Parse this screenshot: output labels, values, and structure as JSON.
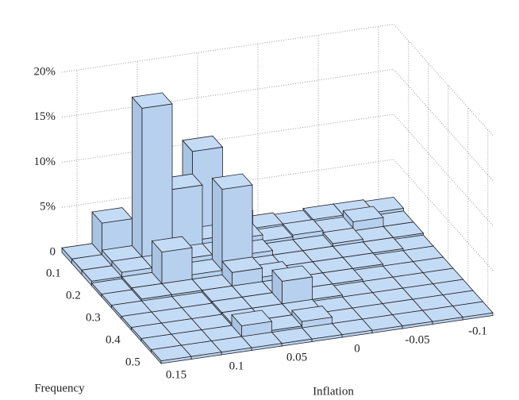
{
  "chart_data": {
    "type": "bar3d",
    "x_label": "Inflation",
    "y_label": "Frequency",
    "x": [
      -0.1,
      -0.075,
      -0.05,
      -0.025,
      0,
      0.025,
      0.05,
      0.075,
      0.1,
      0.125,
      0.15
    ],
    "y": [
      0.05,
      0.1,
      0.15,
      0.2,
      0.25,
      0.3,
      0.35,
      0.4,
      0.45,
      0.5
    ],
    "values": [
      [
        0.8,
        1,
        1,
        0.8,
        1,
        3,
        10.5,
        1.5,
        0.5,
        4,
        0.5
      ],
      [
        0.5,
        1.5,
        0.8,
        1,
        0.8,
        1.5,
        2,
        8,
        17.5,
        1,
        0.5
      ],
      [
        0.5,
        0.5,
        0.8,
        0.5,
        0.5,
        1,
        1.5,
        1.5,
        1,
        1,
        0.5
      ],
      [
        0.3,
        0.5,
        0.5,
        0.5,
        0.5,
        0.5,
        10,
        1,
        4,
        0.5,
        0.3
      ],
      [
        0.3,
        0.3,
        0.5,
        0.5,
        0.5,
        1,
        2,
        0.5,
        0.5,
        0.5,
        0.3
      ],
      [
        0.3,
        0.3,
        0.3,
        0.5,
        0.5,
        0.5,
        0.5,
        0.5,
        0.3,
        0.3,
        0.3
      ],
      [
        0.3,
        0.3,
        0.3,
        0.3,
        0.5,
        3,
        0.5,
        0.5,
        0.3,
        0.3,
        0.3
      ],
      [
        0.3,
        0.3,
        0.3,
        0.3,
        0.3,
        0.5,
        0.5,
        0.5,
        0.3,
        0.3,
        0.3
      ],
      [
        0.3,
        0.3,
        0.3,
        0.3,
        0.3,
        1,
        0.5,
        1.5,
        0.3,
        0.3,
        0.3
      ],
      [
        0.3,
        0.3,
        0.3,
        0.3,
        0.3,
        0.3,
        0.3,
        0.3,
        0.3,
        0.3,
        0.3
      ]
    ],
    "color": "#c4dbf6",
    "xlim": [
      -0.1125,
      0.1625
    ],
    "ylim": [
      0.025,
      0.525
    ],
    "zlim": [
      0,
      20
    ],
    "xticks": [
      -0.1,
      -0.05,
      0,
      0.05,
      0.1,
      0.15
    ],
    "yticks": [
      0.1,
      0.2,
      0.3,
      0.4,
      0.5
    ],
    "zticks": [
      0,
      {
        "value": 5,
        "label": "5%"
      },
      {
        "value": 10,
        "label": "10%"
      },
      {
        "value": 15,
        "label": "15%"
      },
      {
        "value": 20,
        "label": "20%"
      }
    ],
    "grid": true
  }
}
